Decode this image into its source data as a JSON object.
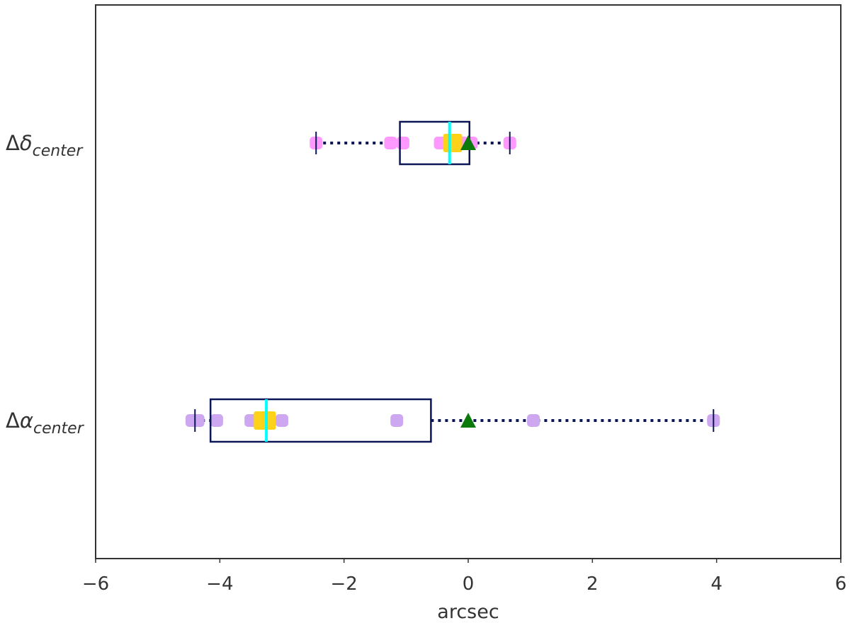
{
  "chart_data": {
    "type": "boxplot",
    "orientation": "horizontal",
    "xlabel": "arcsec",
    "xlim": [
      -6,
      6
    ],
    "xticks": [
      -6,
      -4,
      -2,
      0,
      2,
      4,
      6
    ],
    "xtick_labels": [
      "−6",
      "−4",
      "−2",
      "0",
      "2",
      "4",
      "6"
    ],
    "grid": false,
    "categories": [
      {
        "delta": "Δ",
        "greek": "δ",
        "subscript": "center",
        "whisker_low": -2.45,
        "q1": -1.1,
        "median": -0.3,
        "q3": 0.02,
        "whisker_high": 0.67,
        "mean_marker": 0.0,
        "points": [
          -2.45,
          -1.25,
          -1.05,
          -0.45,
          -0.3,
          -0.2,
          -0.1,
          0.05,
          0.67
        ],
        "point_color": "#ff99ff",
        "highlight_points": [
          -0.3,
          -0.2
        ],
        "highlight_color": "#ffd21a"
      },
      {
        "delta": "Δ",
        "greek": "α",
        "subscript": "center",
        "whisker_low": -4.4,
        "q1": -4.15,
        "median": -3.25,
        "q3": -0.6,
        "whisker_high": 3.95,
        "mean_marker": 0.0,
        "points": [
          -4.45,
          -4.35,
          -4.05,
          -3.5,
          -3.35,
          -3.25,
          -3.0,
          -1.15,
          1.05,
          3.95
        ],
        "point_color": "#cda8f0",
        "highlight_points": [
          -3.35,
          -3.2
        ],
        "highlight_color": "#ffd21a"
      }
    ],
    "colors": {
      "box": "#0b1657",
      "median": "#00ffff",
      "mean_marker": "#0b7a0b",
      "frame": "#333333"
    }
  }
}
